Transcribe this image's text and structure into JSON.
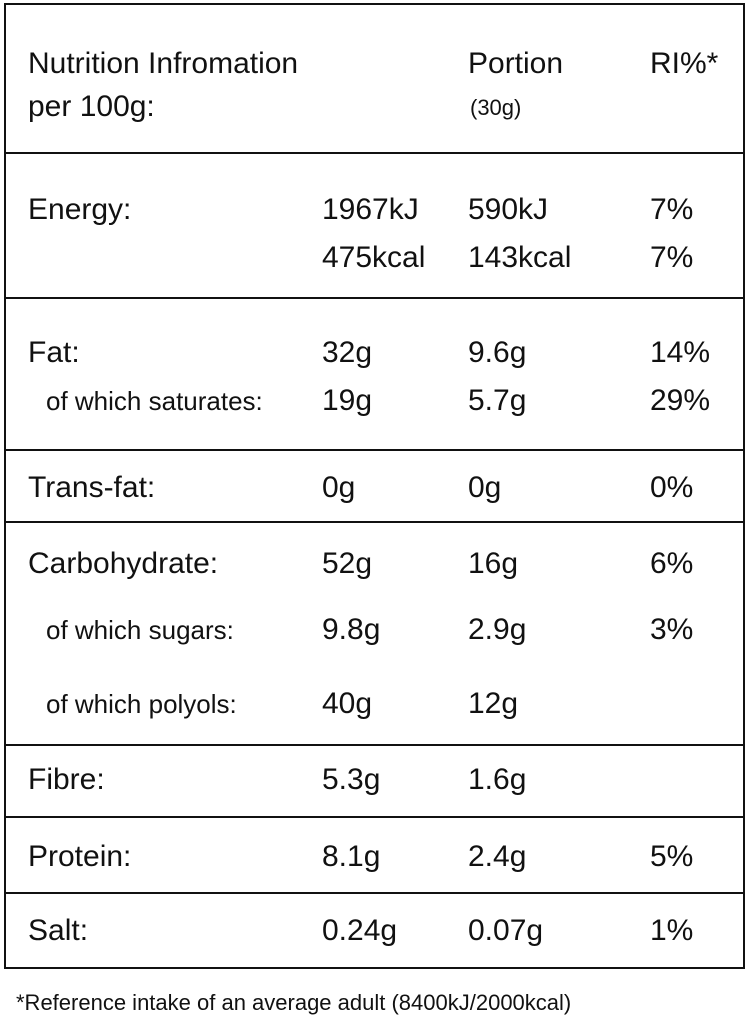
{
  "header": {
    "title_lines": [
      "Nutrition Infromation",
      "per 100g:"
    ],
    "portion": "Portion",
    "portion_note": "(30g)",
    "ri": "RI%*"
  },
  "rows": [
    {
      "lines": [
        {
          "label": "Energy:",
          "per100": "1967kJ",
          "portion": "590kJ",
          "ri": "7%"
        },
        {
          "per100": "475kcal",
          "portion": "143kcal",
          "ri": "7%"
        }
      ]
    },
    {
      "lines": [
        {
          "label": "Fat:",
          "per100": "32g",
          "portion": "9.6g",
          "ri": "14%"
        },
        {
          "label": "of which saturates:",
          "per100": "19g",
          "portion": "5.7g",
          "ri": "29%"
        }
      ]
    },
    {
      "lines": [
        {
          "label": "Trans-fat:",
          "per100": "0g",
          "portion": "0g",
          "ri": "0%"
        }
      ]
    },
    {
      "lines": [
        {
          "label": "Carbohydrate:",
          "per100": "52g",
          "portion": "16g",
          "ri": "6%"
        },
        {
          "label": "of which sugars:",
          "per100": "9.8g",
          "portion": "2.9g",
          "ri": "3%"
        },
        {
          "label": "of which polyols:",
          "per100": "40g",
          "portion": "12g"
        }
      ]
    },
    {
      "lines": [
        {
          "label": "Fibre:",
          "per100": "5.3g",
          "portion": "1.6g"
        }
      ]
    },
    {
      "lines": [
        {
          "label": "Protein:",
          "per100": "8.1g",
          "portion": "2.4g",
          "ri": "5%"
        }
      ]
    },
    {
      "lines": [
        {
          "label": "Salt:",
          "per100": "0.24g",
          "portion": "0.07g",
          "ri": "1%"
        }
      ]
    }
  ],
  "footnote": "*Reference intake of an average adult (8400kJ/2000kcal)"
}
